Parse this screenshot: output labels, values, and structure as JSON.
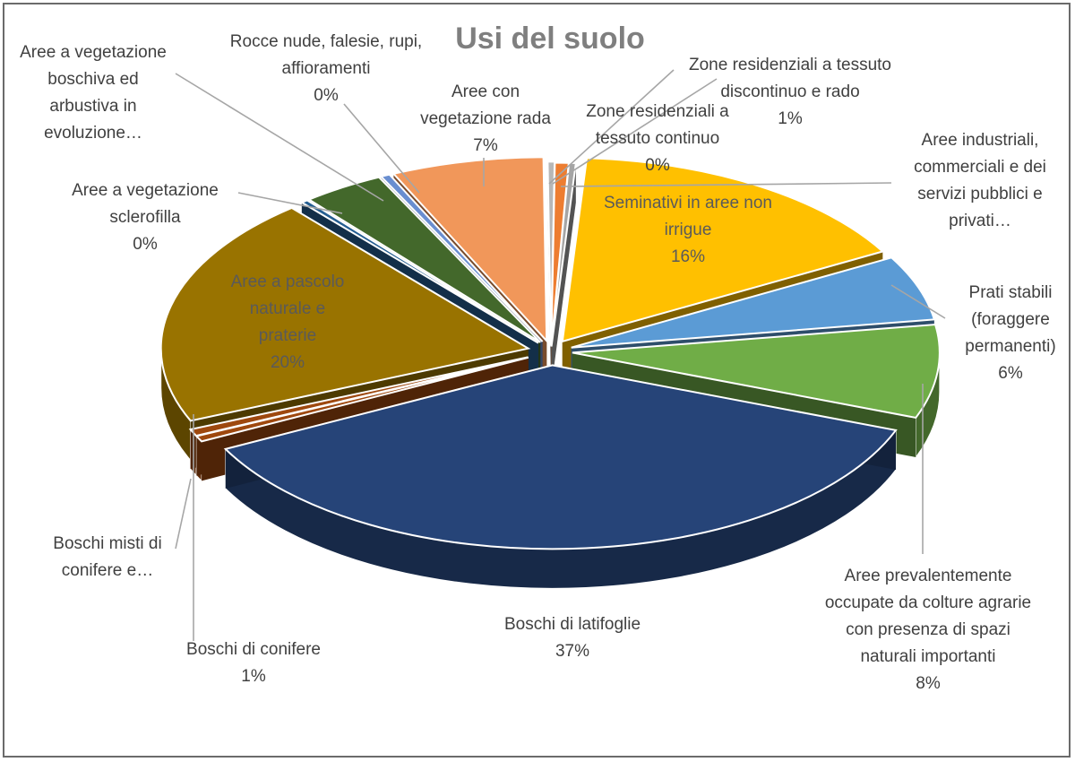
{
  "chart_data": {
    "type": "pie",
    "title": "Usi del suolo",
    "slices": [
      {
        "label": [
          "Zone residenziali a tessuto",
          "discontinuo e rado"
        ],
        "pct_label": "1%",
        "value": 0.6,
        "color": "#ed7d31"
      },
      {
        "label": [
          "Aree industriali,",
          "commerciali e dei",
          "servizi pubblici e",
          "privati…"
        ],
        "pct_label": "",
        "value": 0.3,
        "color": "#a5a5a5"
      },
      {
        "label": [
          "Seminativi in aree non",
          "irrigue"
        ],
        "pct_label": "16%",
        "value": 15.8,
        "color": "#ffc000"
      },
      {
        "label": [
          "Prati stabili",
          "(foraggere",
          "permanenti)"
        ],
        "pct_label": "6%",
        "value": 5.7,
        "color": "#5b9bd5"
      },
      {
        "label": [
          "Aree prevalentemente",
          "occupate da colture agrarie",
          "con presenza di spazi",
          "naturali importanti"
        ],
        "pct_label": "8%",
        "value": 8.2,
        "color": "#70ad47"
      },
      {
        "label": [
          "Boschi di latifoglie"
        ],
        "pct_label": "37%",
        "value": 36.7,
        "color": "#264478"
      },
      {
        "label": [
          "Boschi di conifere"
        ],
        "pct_label": "1%",
        "value": 0.5,
        "color": "#9e480e"
      },
      {
        "label": [
          "Boschi misti di",
          "conifere e…"
        ],
        "pct_label": "",
        "value": 0.6,
        "color": "#9e480e"
      },
      {
        "label": [
          "Aree a pascolo",
          "naturale e",
          "praterie"
        ],
        "pct_label": "20%",
        "value": 20.3,
        "color": "#997300"
      },
      {
        "label": [
          "Aree a vegetazione",
          "sclerofilla"
        ],
        "pct_label": "0%",
        "value": 0.3,
        "color": "#255e91"
      },
      {
        "label": [
          "Aree a vegetazione",
          "boschiva ed",
          "arbustiva in",
          "evoluzione…"
        ],
        "pct_label": "",
        "value": 3.6,
        "color": "#43682b"
      },
      {
        "label": [
          "Rocce nude, falesie, rupi,",
          "affioramenti"
        ],
        "pct_label": "0%",
        "value": 0.4,
        "color": "#698ed0"
      },
      {
        "label": [
          "Aree con",
          "vegetazione rada"
        ],
        "pct_label": "7%",
        "value": 6.7,
        "color": "#f1975a"
      },
      {
        "label": [
          "Zone residenziali a",
          "tessuto continuo"
        ],
        "pct_label": "0%",
        "value": 0.3,
        "color": "#b7b7b7"
      }
    ],
    "legend": "none"
  }
}
